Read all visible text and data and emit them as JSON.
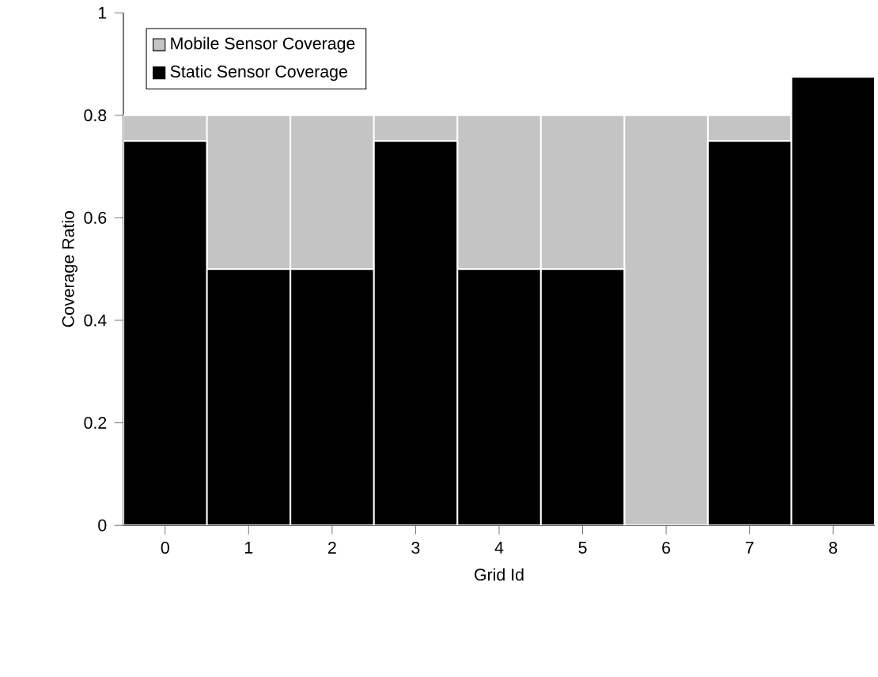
{
  "chart_data": {
    "type": "bar",
    "stacked": true,
    "xlabel": "Grid Id",
    "ylabel": "Coverage Ratio",
    "categories": [
      "0",
      "1",
      "2",
      "3",
      "4",
      "5",
      "6",
      "7",
      "8"
    ],
    "series": [
      {
        "name": "Static Sensor Coverage",
        "color": "#000000",
        "values": [
          0.75,
          0.5,
          0.5,
          0.75,
          0.5,
          0.5,
          0,
          0.75,
          0.875
        ]
      },
      {
        "name": "Mobile Sensor Coverage",
        "color": "#c4c4c4",
        "values": [
          0.05,
          0.3,
          0.3,
          0.05,
          0.3,
          0.3,
          0.8,
          0.05,
          0
        ]
      }
    ],
    "ylim": [
      0,
      1
    ],
    "yticks": [
      0,
      0.2,
      0.4,
      0.6,
      0.8,
      1
    ],
    "legend": "top left",
    "grid": false
  }
}
